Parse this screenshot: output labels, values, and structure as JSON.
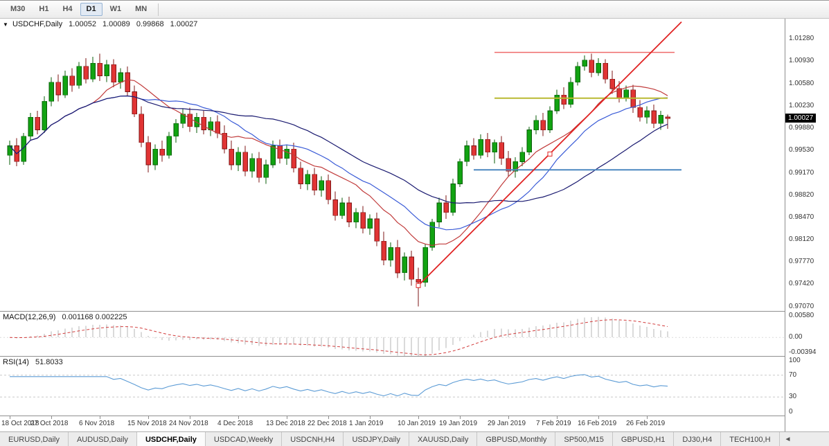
{
  "toolbar": {
    "timeframes": [
      {
        "label": "M30",
        "active": false
      },
      {
        "label": "H1",
        "active": false
      },
      {
        "label": "H4",
        "active": false
      },
      {
        "label": "D1",
        "active": true
      },
      {
        "label": "W1",
        "active": false
      },
      {
        "label": "MN",
        "active": false
      }
    ]
  },
  "chart": {
    "type": "candlestick",
    "symbol_title": "USDCHF,Daily",
    "dropdown_icon": "▼",
    "ohlc": {
      "open": "1.00052",
      "high": "1.00089",
      "low": "0.99868",
      "close": "1.00027"
    },
    "current_price": "1.00027",
    "y_range": {
      "min": 0.97,
      "max": 1.016
    },
    "price_axis_labels": [
      {
        "value": 1.0128,
        "text": "1.01280"
      },
      {
        "value": 1.0093,
        "text": "1.00930"
      },
      {
        "value": 1.0058,
        "text": "1.00580"
      },
      {
        "value": 1.0023,
        "text": "1.00230"
      },
      {
        "value": 0.9988,
        "text": "0.99880"
      },
      {
        "value": 0.9953,
        "text": "0.99530"
      },
      {
        "value": 0.9917,
        "text": "0.99170"
      },
      {
        "value": 0.9882,
        "text": "0.98820"
      },
      {
        "value": 0.9847,
        "text": "0.98470"
      },
      {
        "value": 0.9812,
        "text": "0.98120"
      },
      {
        "value": 0.9777,
        "text": "0.97770"
      },
      {
        "value": 0.9742,
        "text": "0.97420"
      },
      {
        "value": 0.9707,
        "text": "0.97070"
      }
    ],
    "x_axis_labels": [
      {
        "index": 0,
        "text": "18 Oct 2018"
      },
      {
        "index": 6,
        "text": "27 Oct 2018"
      },
      {
        "index": 13,
        "text": "6 Nov 2018"
      },
      {
        "index": 20,
        "text": "15 Nov 2018"
      },
      {
        "index": 26,
        "text": "24 Nov 2018"
      },
      {
        "index": 33,
        "text": "4 Dec 2018"
      },
      {
        "index": 40,
        "text": "13 Dec 2018"
      },
      {
        "index": 46,
        "text": "22 Dec 2018"
      },
      {
        "index": 52,
        "text": "1 Jan 2019"
      },
      {
        "index": 59,
        "text": "10 Jan 2019"
      },
      {
        "index": 65,
        "text": "19 Jan 2019"
      },
      {
        "index": 72,
        "text": "29 Jan 2019"
      },
      {
        "index": 79,
        "text": "7 Feb 2019"
      },
      {
        "index": 85,
        "text": "16 Feb 2019"
      },
      {
        "index": 92,
        "text": "26 Feb 2019"
      }
    ],
    "colors": {
      "bull": "#12a312",
      "bear": "#e13434",
      "bull_border": "#075c07",
      "bear_border": "#7e1515"
    },
    "moving_averages": [
      {
        "period": 13,
        "color": "#c13b3b"
      },
      {
        "period": 20,
        "color": "#3a5bd7"
      },
      {
        "period": 34,
        "color": "#1a1a70"
      }
    ],
    "objects": {
      "trendline": {
        "color": "#e02222",
        "from": {
          "index": 59,
          "price": 0.974
        },
        "to": {
          "index": 97,
          "price": 1.0155
        },
        "handles": [
          {
            "index": 59,
            "price": 0.974
          },
          {
            "index": 78,
            "price": 0.9947
          }
        ]
      },
      "hlines": [
        {
          "color": "#ef6a6a",
          "price": 1.0107,
          "from": 70,
          "to": 96,
          "width": 1.5
        },
        {
          "color": "#b9b932",
          "price": 1.0035,
          "from": 70,
          "to": 95,
          "width": 2
        },
        {
          "color": "#4b87c0",
          "price": 0.9922,
          "from": 67,
          "to": 97,
          "width": 2
        }
      ]
    },
    "candles": [
      [
        0.9945,
        0.9968,
        0.993,
        0.996
      ],
      [
        0.996,
        0.9972,
        0.9928,
        0.9935
      ],
      [
        0.9935,
        0.998,
        0.993,
        0.9975
      ],
      [
        0.9975,
        1.0012,
        0.9968,
        1.0005
      ],
      [
        1.0005,
        1.0015,
        0.9978,
        0.9985
      ],
      [
        0.9985,
        1.0038,
        0.998,
        1.003
      ],
      [
        1.003,
        1.0068,
        1.0022,
        1.006
      ],
      [
        1.006,
        1.0072,
        1.003,
        1.004
      ],
      [
        1.004,
        1.0078,
        1.0035,
        1.007
      ],
      [
        1.007,
        1.0082,
        1.0045,
        1.0055
      ],
      [
        1.0055,
        1.0092,
        1.005,
        1.0085
      ],
      [
        1.0085,
        1.0098,
        1.0058,
        1.0065
      ],
      [
        1.0065,
        1.01,
        1.006,
        1.009
      ],
      [
        1.009,
        1.0105,
        1.0062,
        1.007
      ],
      [
        1.007,
        1.0095,
        1.006,
        1.0088
      ],
      [
        1.0088,
        1.0096,
        1.0052,
        1.006
      ],
      [
        1.006,
        1.0082,
        1.005,
        1.0075
      ],
      [
        1.0075,
        1.0085,
        1.0038,
        1.0045
      ],
      [
        1.0045,
        1.0055,
        1.0005,
        1.001
      ],
      [
        1.001,
        1.0022,
        0.9958,
        0.9965
      ],
      [
        0.9965,
        0.9975,
        0.9918,
        0.993
      ],
      [
        0.993,
        0.9962,
        0.9922,
        0.9955
      ],
      [
        0.9955,
        0.9968,
        0.9935,
        0.9945
      ],
      [
        0.9945,
        0.9982,
        0.994,
        0.9975
      ],
      [
        0.9975,
        1.0002,
        0.9965,
        0.9995
      ],
      [
        0.9995,
        1.0018,
        0.9988,
        1.001
      ],
      [
        1.001,
        1.002,
        0.9982,
        0.999
      ],
      [
        0.999,
        1.0012,
        0.998,
        1.0005
      ],
      [
        1.0005,
        1.0015,
        0.9978,
        0.9985
      ],
      [
        0.9985,
        1.0005,
        0.9975,
        0.9998
      ],
      [
        0.9998,
        1.0008,
        0.9972,
        0.998
      ],
      [
        0.998,
        0.9992,
        0.9948,
        0.9955
      ],
      [
        0.9955,
        0.9968,
        0.9922,
        0.993
      ],
      [
        0.993,
        0.9958,
        0.992,
        0.995
      ],
      [
        0.995,
        0.996,
        0.9912,
        0.992
      ],
      [
        0.992,
        0.9948,
        0.991,
        0.994
      ],
      [
        0.994,
        0.995,
        0.9902,
        0.991
      ],
      [
        0.991,
        0.9938,
        0.99,
        0.993
      ],
      [
        0.993,
        0.9968,
        0.9925,
        0.996
      ],
      [
        0.996,
        0.997,
        0.9932,
        0.994
      ],
      [
        0.994,
        0.9962,
        0.993,
        0.9955
      ],
      [
        0.9955,
        0.9965,
        0.9918,
        0.9925
      ],
      [
        0.9925,
        0.9935,
        0.9892,
        0.99
      ],
      [
        0.99,
        0.9922,
        0.989,
        0.9915
      ],
      [
        0.9915,
        0.9925,
        0.9882,
        0.989
      ],
      [
        0.989,
        0.9912,
        0.988,
        0.9905
      ],
      [
        0.9905,
        0.9915,
        0.9868,
        0.9875
      ],
      [
        0.9875,
        0.9888,
        0.9842,
        0.985
      ],
      [
        0.985,
        0.9878,
        0.9845,
        0.987
      ],
      [
        0.987,
        0.988,
        0.9832,
        0.984
      ],
      [
        0.984,
        0.9862,
        0.983,
        0.9855
      ],
      [
        0.9855,
        0.9865,
        0.9822,
        0.983
      ],
      [
        0.983,
        0.9852,
        0.982,
        0.9845
      ],
      [
        0.9845,
        0.9855,
        0.9802,
        0.981
      ],
      [
        0.981,
        0.9825,
        0.9772,
        0.978
      ],
      [
        0.978,
        0.9808,
        0.977,
        0.98
      ],
      [
        0.98,
        0.9812,
        0.9752,
        0.976
      ],
      [
        0.976,
        0.9792,
        0.9748,
        0.9785
      ],
      [
        0.9785,
        0.9795,
        0.974,
        0.975
      ],
      [
        0.975,
        0.9768,
        0.9707,
        0.9745
      ],
      [
        0.9745,
        0.9805,
        0.9738,
        0.98
      ],
      [
        0.98,
        0.9845,
        0.9795,
        0.984
      ],
      [
        0.984,
        0.9878,
        0.9832,
        0.987
      ],
      [
        0.987,
        0.9882,
        0.9845,
        0.9855
      ],
      [
        0.9855,
        0.9908,
        0.985,
        0.99
      ],
      [
        0.99,
        0.994,
        0.9895,
        0.9935
      ],
      [
        0.9935,
        0.9968,
        0.9928,
        0.996
      ],
      [
        0.996,
        0.9972,
        0.9938,
        0.9945
      ],
      [
        0.9945,
        0.9978,
        0.994,
        0.997
      ],
      [
        0.997,
        0.998,
        0.9942,
        0.995
      ],
      [
        0.995,
        0.997,
        0.9932,
        0.9965
      ],
      [
        0.9965,
        0.9975,
        0.993,
        0.994
      ],
      [
        0.994,
        0.9952,
        0.9912,
        0.992
      ],
      [
        0.992,
        0.9942,
        0.991,
        0.9935
      ],
      [
        0.9935,
        0.9958,
        0.9928,
        0.995
      ],
      [
        0.995,
        0.999,
        0.9945,
        0.9985
      ],
      [
        0.9985,
        1.0008,
        0.9978,
        1.0
      ],
      [
        1.0,
        1.0012,
        0.9975,
        0.9985
      ],
      [
        0.9985,
        1.0022,
        0.998,
        1.0015
      ],
      [
        1.0015,
        1.0048,
        1.001,
        1.004
      ],
      [
        1.004,
        1.0052,
        1.0018,
        1.0025
      ],
      [
        1.0025,
        1.0068,
        1.002,
        1.006
      ],
      [
        1.006,
        1.0092,
        1.0055,
        1.0085
      ],
      [
        1.0085,
        1.0102,
        1.0078,
        1.0095
      ],
      [
        1.0095,
        1.0105,
        1.0068,
        1.0075
      ],
      [
        1.0075,
        1.0098,
        1.007,
        1.009
      ],
      [
        1.009,
        1.0096,
        1.0058,
        1.0065
      ],
      [
        1.0065,
        1.0078,
        1.0042,
        1.005
      ],
      [
        1.005,
        1.0062,
        1.0028,
        1.0035
      ],
      [
        1.0035,
        1.0055,
        1.003,
        1.0048
      ],
      [
        1.0048,
        1.0056,
        1.0012,
        1.002
      ],
      [
        1.002,
        1.0032,
        0.9998,
        1.0005
      ],
      [
        1.0005,
        1.0022,
        0.9995,
        1.0015
      ],
      [
        1.0015,
        1.0025,
        0.9988,
        0.9995
      ],
      [
        0.9995,
        1.0015,
        0.9985,
        1.0008
      ],
      [
        1.00052,
        1.00089,
        0.99868,
        1.00027
      ]
    ]
  },
  "macd": {
    "label": "MACD(12,26,9)",
    "values_text": "0.001168 0.002225",
    "fast": 12,
    "slow": 26,
    "signal": 9,
    "range": {
      "min": -0.0046,
      "max": 0.0064
    },
    "scale_labels": [
      {
        "value": 0.0058,
        "text": "0.00580"
      },
      {
        "value": 0,
        "text": "0.00"
      },
      {
        "value": -0.00394,
        "text": "-0.00394"
      }
    ],
    "histogram_color": "#b4b4b4",
    "signal_color": "#d23b3b"
  },
  "rsi": {
    "label": "RSI(14)",
    "value_text": "51.8033",
    "period": 14,
    "levels": [
      70,
      30
    ],
    "scale_labels": [
      {
        "value": 100,
        "text": "100"
      },
      {
        "value": 70,
        "text": "70"
      },
      {
        "value": 30,
        "text": "30"
      },
      {
        "value": 0,
        "text": "0"
      }
    ],
    "line_color": "#5b9bd5"
  },
  "tabs": {
    "items": [
      {
        "label": "EURUSD,Daily",
        "active": false
      },
      {
        "label": "AUDUSD,Daily",
        "active": false
      },
      {
        "label": "USDCHF,Daily",
        "active": true
      },
      {
        "label": "USDCAD,Weekly",
        "active": false
      },
      {
        "label": "USDCNH,H4",
        "active": false
      },
      {
        "label": "USDJPY,Daily",
        "active": false
      },
      {
        "label": "XAUUSD,Daily",
        "active": false
      },
      {
        "label": "GBPUSD,Monthly",
        "active": false
      },
      {
        "label": "SP500,M15",
        "active": false
      },
      {
        "label": "GBPUSD,H1",
        "active": false
      },
      {
        "label": "DJ30,H4",
        "active": false
      },
      {
        "label": "TECH100,H",
        "active": false
      }
    ],
    "scroll_left_arrow": "◄"
  }
}
